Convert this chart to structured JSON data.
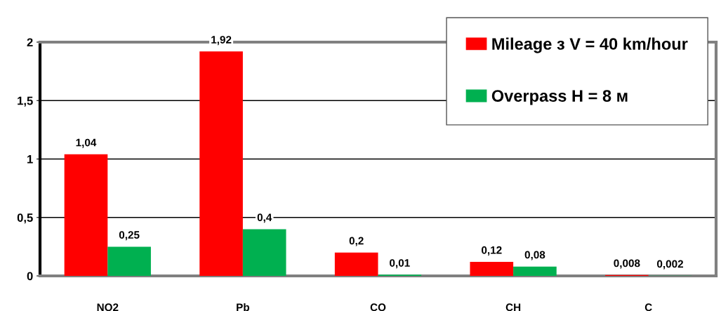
{
  "chart_data": {
    "type": "bar",
    "categories": [
      "NO2",
      "Pb",
      "CO",
      "CH",
      "C"
    ],
    "series": [
      {
        "name": "Mileage з V = 40 km/hour",
        "color": "#ff0000",
        "values": [
          1.04,
          1.92,
          0.2,
          0.12,
          0.008
        ],
        "value_labels": [
          "1,04",
          "1,92",
          "0,2",
          "0,12",
          "0,008"
        ]
      },
      {
        "name": "Overpass H = 8 м",
        "color": "#00b050",
        "values": [
          0.25,
          0.4,
          0.01,
          0.08,
          0.002
        ],
        "value_labels": [
          "0,25",
          "0,4",
          "0,01",
          "0,08",
          "0,002"
        ]
      }
    ],
    "ylim": [
      0,
      2
    ],
    "yticks": [
      0,
      {
        "value": 0.5,
        "label": "0,5"
      },
      1,
      {
        "value": 1.5,
        "label": "1,5"
      },
      2
    ],
    "grid": "y",
    "legend": "top right"
  }
}
